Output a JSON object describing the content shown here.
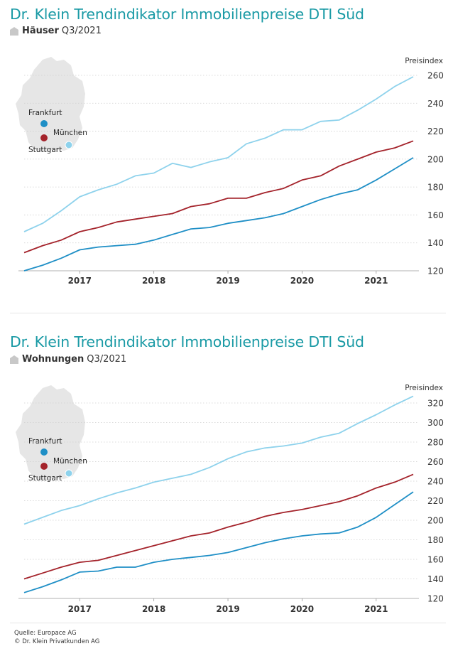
{
  "colors": {
    "title": "#1a9aa5",
    "frankfurt": "#1f8fc6",
    "stuttgart": "#a4232b",
    "muenchen": "#8ed2ec",
    "map": "#e6e6e6"
  },
  "panels": [
    {
      "title": "Dr. Klein Trendindikator Immobilienpreise DTI Süd",
      "subtitle_bold": "Häuser",
      "subtitle_rest": "Q3/2021",
      "icon": "house-icon",
      "map_labels": {
        "frankfurt": "Frankfurt",
        "muenchen": "München",
        "stuttgart": "Stuttgart"
      }
    },
    {
      "title": "Dr. Klein Trendindikator Immobilienpreise DTI Süd",
      "subtitle_bold": "Wohnungen",
      "subtitle_rest": "Q3/2021",
      "icon": "house-icon",
      "map_labels": {
        "frankfurt": "Frankfurt",
        "muenchen": "München",
        "stuttgart": "Stuttgart"
      }
    }
  ],
  "footer": {
    "source": "Quelle: Europace AG",
    "copyright": "© Dr. Klein Privatkunden AG"
  },
  "chart_data": [
    {
      "type": "line",
      "title": "Dr. Klein Trendindikator Immobilienpreise DTI Süd",
      "ylabel": "Preisindex",
      "x": [
        "2016-Q2",
        "2016-Q3",
        "2016-Q4",
        "2017-Q1",
        "2017-Q2",
        "2017-Q3",
        "2017-Q4",
        "2018-Q1",
        "2018-Q2",
        "2018-Q3",
        "2018-Q4",
        "2019-Q1",
        "2019-Q2",
        "2019-Q3",
        "2019-Q4",
        "2020-Q1",
        "2020-Q2",
        "2020-Q3",
        "2020-Q4",
        "2021-Q1",
        "2021-Q2",
        "2021-Q3"
      ],
      "xticks": [
        "2017",
        "2018",
        "2019",
        "2020",
        "2021"
      ],
      "yticks": [
        120,
        140,
        160,
        180,
        200,
        220,
        240,
        260
      ],
      "ylim": [
        120,
        260
      ],
      "grid": true,
      "series": [
        {
          "name": "München",
          "color": "#8ed2ec",
          "values": [
            148,
            154,
            163,
            173,
            178,
            182,
            188,
            190,
            197,
            194,
            198,
            201,
            211,
            215,
            221,
            221,
            227,
            228,
            235,
            243,
            252,
            259
          ]
        },
        {
          "name": "Stuttgart",
          "color": "#a4232b",
          "values": [
            133,
            138,
            142,
            148,
            151,
            155,
            157,
            159,
            161,
            166,
            168,
            172,
            172,
            176,
            179,
            185,
            188,
            195,
            200,
            205,
            208,
            213
          ]
        },
        {
          "name": "Frankfurt",
          "color": "#1f8fc6",
          "values": [
            120,
            124,
            129,
            135,
            137,
            138,
            139,
            142,
            146,
            150,
            151,
            154,
            156,
            158,
            161,
            166,
            171,
            175,
            178,
            185,
            193,
            201
          ]
        }
      ]
    },
    {
      "type": "line",
      "title": "Dr. Klein Trendindikator Immobilienpreise DTI Süd",
      "ylabel": "Preisindex",
      "x": [
        "2016-Q2",
        "2016-Q3",
        "2016-Q4",
        "2017-Q1",
        "2017-Q2",
        "2017-Q3",
        "2017-Q4",
        "2018-Q1",
        "2018-Q2",
        "2018-Q3",
        "2018-Q4",
        "2019-Q1",
        "2019-Q2",
        "2019-Q3",
        "2019-Q4",
        "2020-Q1",
        "2020-Q2",
        "2020-Q3",
        "2020-Q4",
        "2021-Q1",
        "2021-Q2",
        "2021-Q3"
      ],
      "xticks": [
        "2017",
        "2018",
        "2019",
        "2020",
        "2021"
      ],
      "yticks": [
        120,
        140,
        160,
        180,
        200,
        220,
        240,
        260,
        280,
        300,
        320
      ],
      "ylim": [
        120,
        320
      ],
      "grid": true,
      "series": [
        {
          "name": "München",
          "color": "#8ed2ec",
          "values": [
            196,
            203,
            210,
            215,
            222,
            228,
            233,
            239,
            243,
            247,
            254,
            263,
            270,
            274,
            276,
            279,
            285,
            289,
            299,
            308,
            318,
            327
          ]
        },
        {
          "name": "Stuttgart",
          "color": "#a4232b",
          "values": [
            140,
            146,
            152,
            157,
            159,
            164,
            169,
            174,
            179,
            184,
            187,
            193,
            198,
            204,
            208,
            211,
            215,
            219,
            225,
            233,
            239,
            247
          ]
        },
        {
          "name": "Frankfurt",
          "color": "#1f8fc6",
          "values": [
            126,
            132,
            139,
            147,
            148,
            152,
            152,
            157,
            160,
            162,
            164,
            167,
            172,
            177,
            181,
            184,
            186,
            187,
            193,
            203,
            216,
            229
          ]
        }
      ]
    }
  ]
}
